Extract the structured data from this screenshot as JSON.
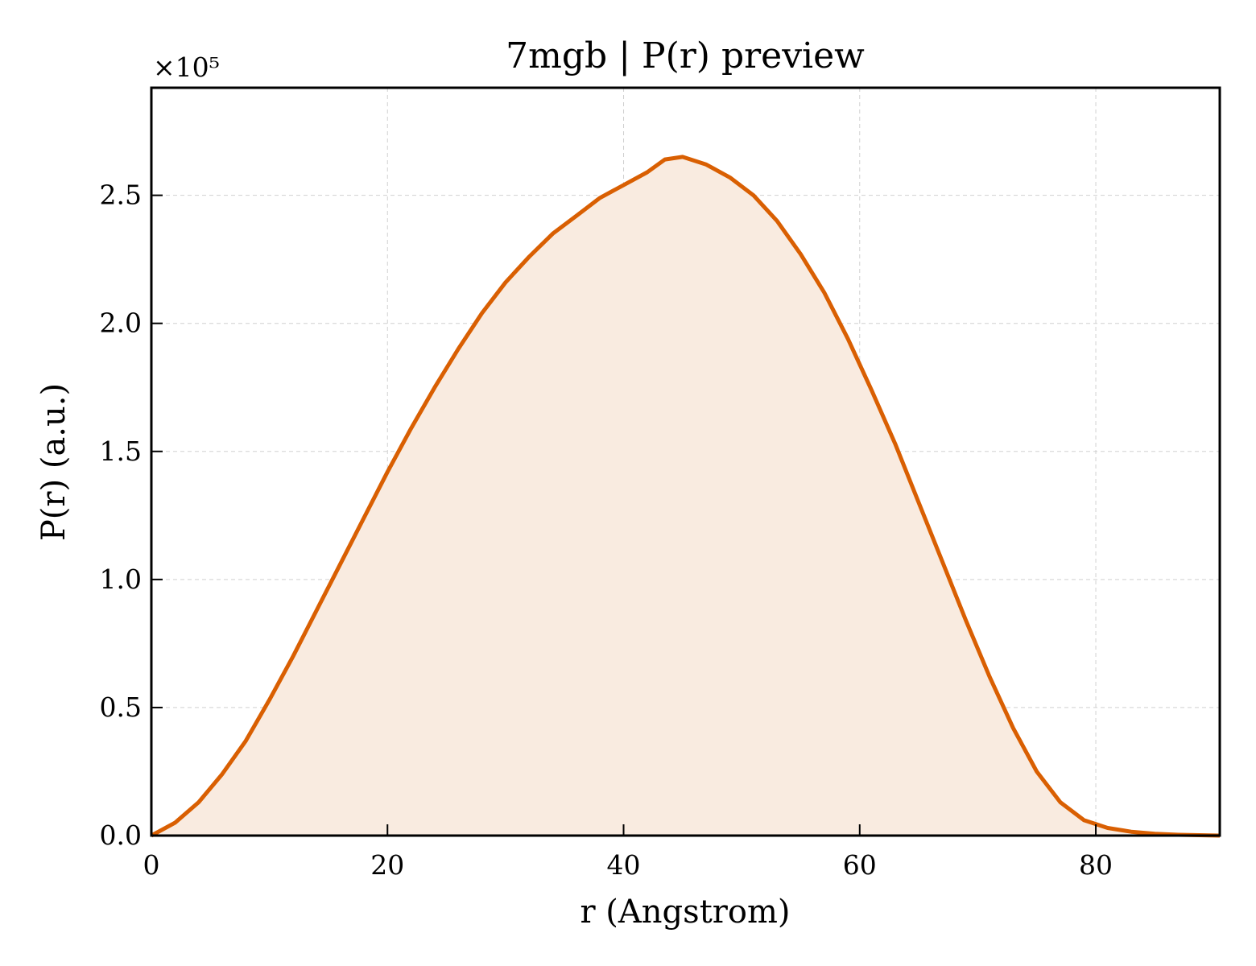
{
  "chart_data": {
    "type": "area",
    "title": "7mgb | P(r) preview",
    "xlabel": "r (Angstrom)",
    "ylabel": "P(r) (a.u.)",
    "y_multiplier": "×10⁵",
    "xlim": [
      0,
      90.5
    ],
    "ylim": [
      0,
      2.92
    ],
    "xticks": [
      0,
      20,
      40,
      60,
      80
    ],
    "xtick_labels": [
      "0",
      "20",
      "40",
      "60",
      "80"
    ],
    "yticks": [
      0,
      0.5,
      1.0,
      1.5,
      2.0,
      2.5
    ],
    "ytick_labels": [
      "0.0",
      "0.5",
      "1.0",
      "1.5",
      "2.0",
      "2.5"
    ],
    "grid": true,
    "line_color": "#d95f02",
    "fill_color": "#f9ebe0",
    "series": [
      {
        "x": [
          0,
          2,
          4,
          6,
          8,
          10,
          12,
          14,
          16,
          18,
          20,
          22,
          24,
          26,
          28,
          30,
          32,
          34,
          36,
          38,
          40,
          42,
          43.5,
          45,
          47,
          49,
          51,
          53,
          55,
          57,
          59,
          61,
          63,
          65,
          67,
          69,
          71,
          73,
          75,
          77,
          79,
          81,
          83,
          85,
          87,
          90.5
        ],
        "y": [
          0,
          0.05,
          0.13,
          0.24,
          0.37,
          0.53,
          0.7,
          0.88,
          1.06,
          1.24,
          1.42,
          1.59,
          1.75,
          1.9,
          2.04,
          2.16,
          2.26,
          2.35,
          2.42,
          2.49,
          2.54,
          2.59,
          2.64,
          2.65,
          2.62,
          2.57,
          2.5,
          2.4,
          2.27,
          2.12,
          1.94,
          1.74,
          1.53,
          1.3,
          1.07,
          0.84,
          0.62,
          0.42,
          0.25,
          0.13,
          0.06,
          0.03,
          0.015,
          0.007,
          0.003,
          0
        ]
      }
    ]
  }
}
